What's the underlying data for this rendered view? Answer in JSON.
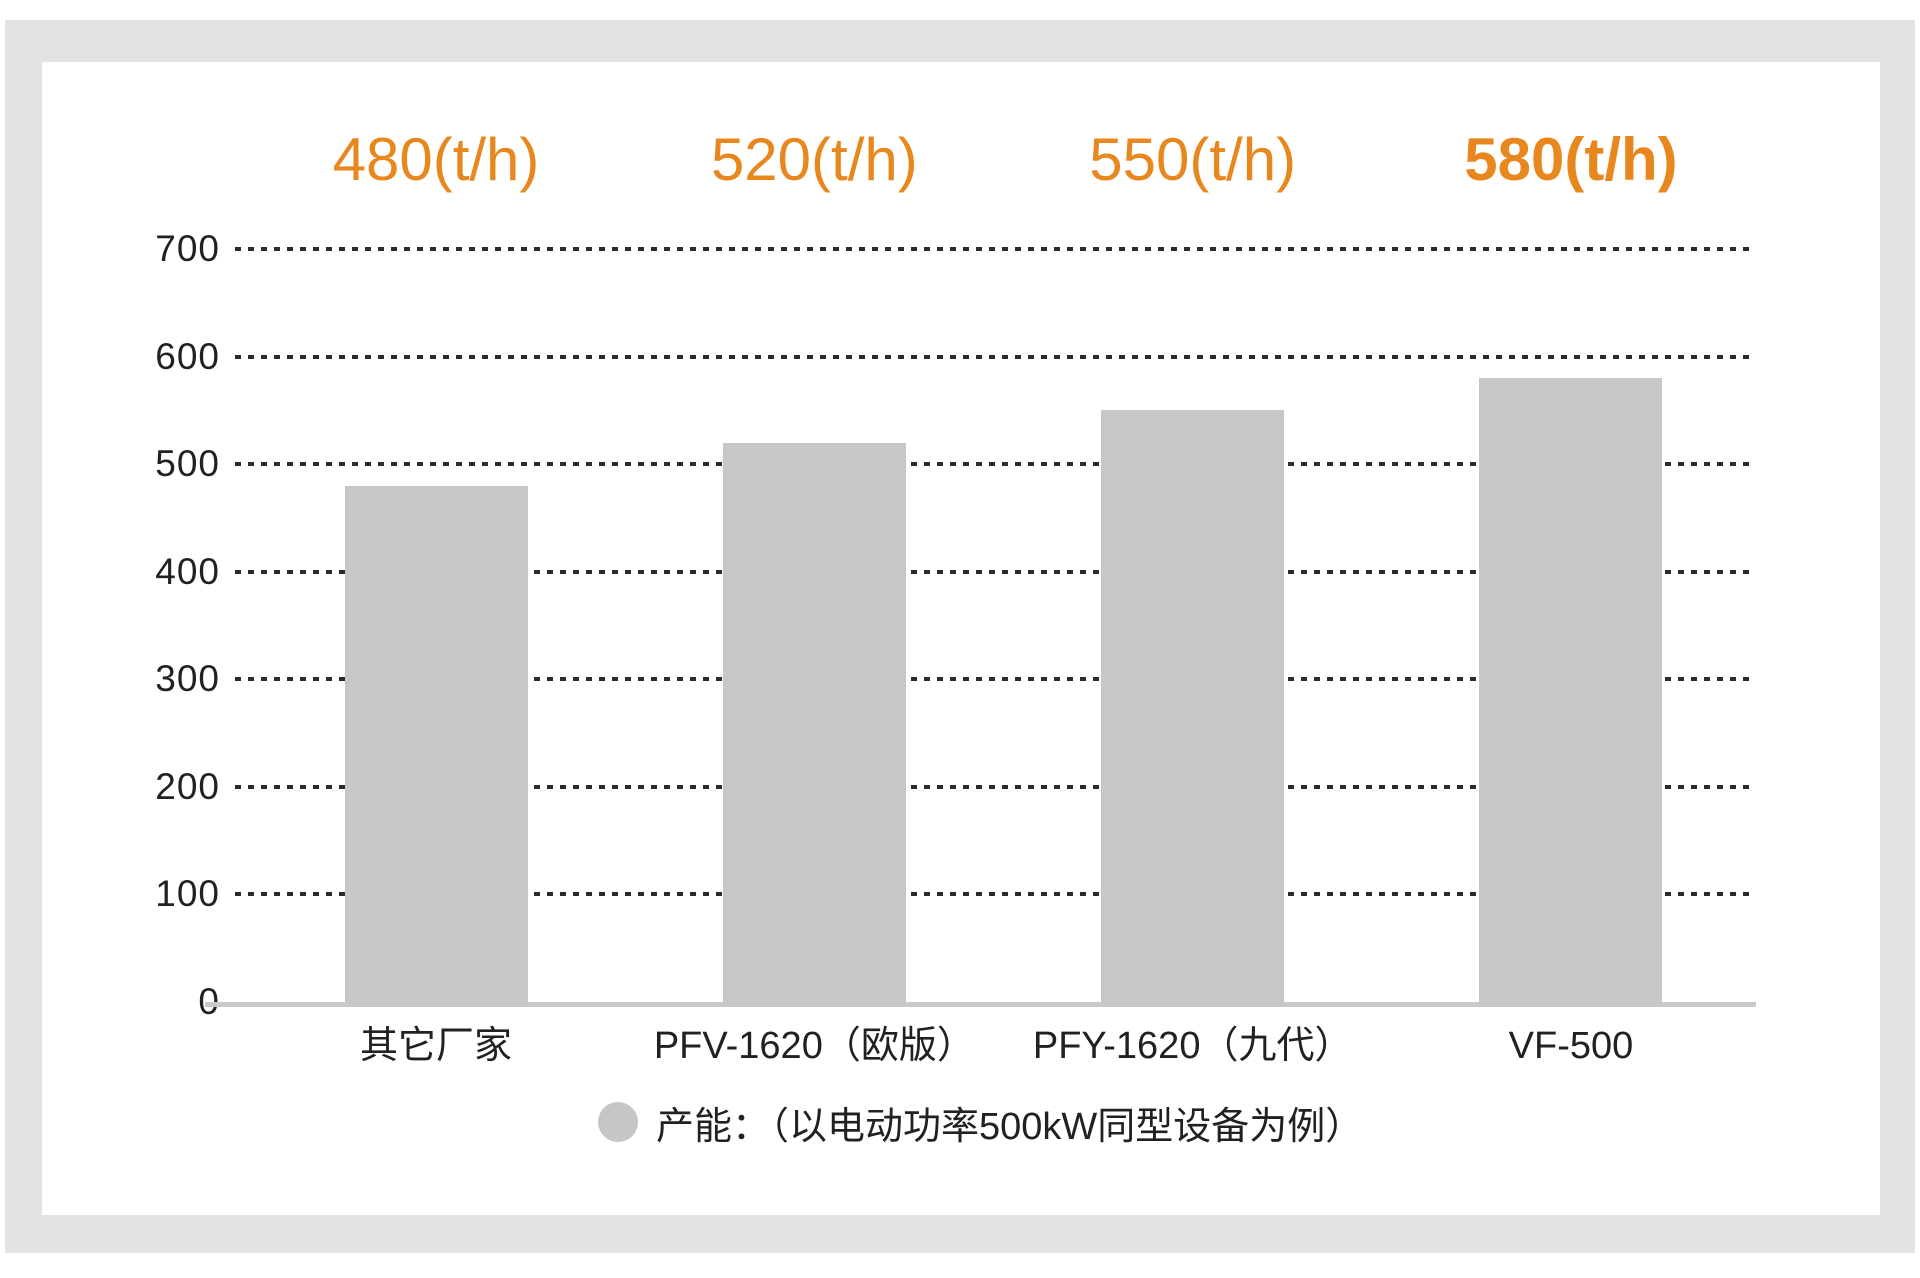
{
  "chart_data": {
    "type": "bar",
    "title": "",
    "categories": [
      "其它厂家",
      "PFV-1620（欧版）",
      "PFY-1620（九代）",
      "VF-500"
    ],
    "values": [
      480,
      520,
      550,
      580
    ],
    "value_labels": [
      "480(t/h)",
      "520(t/h)",
      "550(t/h)",
      "580(t/h)"
    ],
    "highlight_index": 3,
    "xlabel": "",
    "ylabel": "",
    "ylim": [
      0,
      700
    ],
    "yticks": [
      0,
      100,
      200,
      300,
      400,
      500,
      600,
      700
    ],
    "grid": "horizontal-dotted",
    "legend": {
      "label": "产能：（以电动功率500kW同型设备为例）",
      "marker": "gray-circle",
      "position": "bottom-center"
    },
    "colors": {
      "bar": "#c7c7c7",
      "accent": "#e8871e",
      "grid": "#2e2a28",
      "axis_line": "#c9c9c9",
      "text": "#242021",
      "frame": "#e3e3e3",
      "panel": "#ffffff"
    }
  }
}
